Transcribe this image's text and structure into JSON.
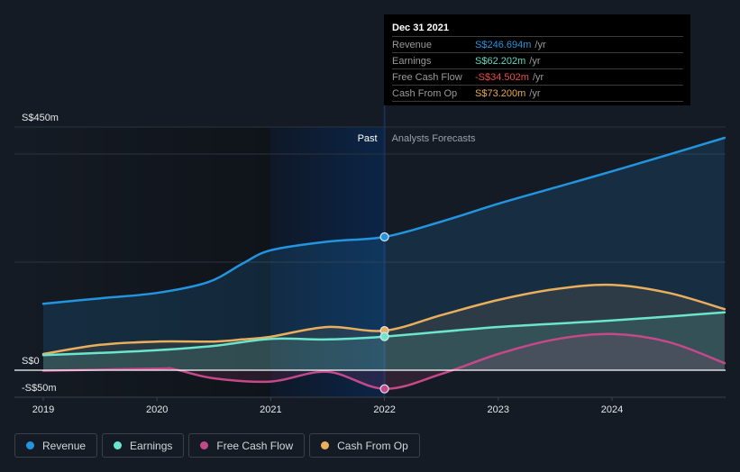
{
  "tooltip": {
    "date": "Dec 31 2021",
    "rows": [
      {
        "label": "Revenue",
        "value": "S$246.694m",
        "unit": "/yr",
        "color": "#2394df"
      },
      {
        "label": "Earnings",
        "value": "S$62.202m",
        "unit": "/yr",
        "color": "#5fd9be"
      },
      {
        "label": "Free Cash Flow",
        "value": "-S$34.502m",
        "unit": "/yr",
        "color": "#e84c4c"
      },
      {
        "label": "Cash From Op",
        "value": "S$73.200m",
        "unit": "/yr",
        "color": "#e8a94f"
      }
    ]
  },
  "legend": [
    {
      "label": "Revenue",
      "color": "#2394df"
    },
    {
      "label": "Earnings",
      "color": "#6ce5cd"
    },
    {
      "label": "Free Cash Flow",
      "color": "#c4498a"
    },
    {
      "label": "Cash From Op",
      "color": "#e9af5e"
    }
  ],
  "chart_data": {
    "type": "line",
    "title": "",
    "xlabel": "",
    "ylabel": "",
    "units": "S$ millions",
    "xlim": [
      2019.0,
      2024.99
    ],
    "ylim": [
      -50,
      450
    ],
    "x_ticks": [
      {
        "value": 2019,
        "label": "2019"
      },
      {
        "value": 2020,
        "label": "2020"
      },
      {
        "value": 2021,
        "label": "2021"
      },
      {
        "value": 2022,
        "label": "2022"
      },
      {
        "value": 2023,
        "label": "2023"
      },
      {
        "value": 2024,
        "label": "2024"
      }
    ],
    "y_ticks": [
      {
        "value": 450,
        "label": "S$450m"
      },
      {
        "value": 0,
        "label": "S$0"
      },
      {
        "value": -50,
        "label": "-S$50m"
      }
    ],
    "gridlines": [
      450,
      400,
      200
    ],
    "grid": true,
    "past_label": "Past",
    "forecast_label": "Analysts Forecasts",
    "past_band": [
      2021.0,
      2022.0
    ],
    "highlight_x": 2022.0,
    "legend_position": "bottom-left",
    "series": [
      {
        "name": "Revenue",
        "key": "revenue",
        "color": "#2394df",
        "fill": "rgba(35,148,223,0.16)",
        "points": [
          [
            2019.0,
            123
          ],
          [
            2019.5,
            133
          ],
          [
            2020.0,
            143
          ],
          [
            2020.45,
            163
          ],
          [
            2020.75,
            197
          ],
          [
            2021.0,
            222
          ],
          [
            2021.5,
            238
          ],
          [
            2022.0,
            246.694
          ],
          [
            2022.5,
            275
          ],
          [
            2023.0,
            308
          ],
          [
            2023.5,
            338
          ],
          [
            2024.0,
            368
          ],
          [
            2024.5,
            399
          ],
          [
            2024.99,
            430
          ]
        ]
      },
      {
        "name": "Cash From Op",
        "key": "cash-from-op",
        "color": "#e9af5e",
        "fill": "rgba(233,175,94,0.10)",
        "points": [
          [
            2019.0,
            30
          ],
          [
            2019.5,
            47
          ],
          [
            2020.0,
            53
          ],
          [
            2020.5,
            53
          ],
          [
            2020.75,
            57
          ],
          [
            2021.0,
            62
          ],
          [
            2021.5,
            80
          ],
          [
            2022.0,
            73.2
          ],
          [
            2022.5,
            102
          ],
          [
            2023.0,
            130
          ],
          [
            2023.5,
            150
          ],
          [
            2024.0,
            158
          ],
          [
            2024.5,
            143
          ],
          [
            2024.99,
            113
          ]
        ]
      },
      {
        "name": "Earnings",
        "key": "earnings",
        "color": "#6ce5cd",
        "fill": "rgba(108,229,205,0.13)",
        "points": [
          [
            2019.0,
            28
          ],
          [
            2019.5,
            32
          ],
          [
            2020.0,
            37
          ],
          [
            2020.5,
            45
          ],
          [
            2021.0,
            58
          ],
          [
            2021.5,
            57
          ],
          [
            2022.0,
            62.202
          ],
          [
            2023.0,
            80
          ],
          [
            2024.0,
            92
          ],
          [
            2024.99,
            107
          ]
        ]
      },
      {
        "name": "Free Cash Flow",
        "key": "free-cash-flow",
        "color": "#c4498a",
        "fill": "rgba(196,73,138,0.14)",
        "points": [
          [
            2019.0,
            -1
          ],
          [
            2020.0,
            3
          ],
          [
            2020.15,
            2
          ],
          [
            2020.5,
            -15
          ],
          [
            2021.0,
            -21
          ],
          [
            2021.5,
            -3
          ],
          [
            2022.0,
            -34.502
          ],
          [
            2022.5,
            -7
          ],
          [
            2023.0,
            30
          ],
          [
            2023.5,
            57
          ],
          [
            2024.0,
            67
          ],
          [
            2024.5,
            52
          ],
          [
            2024.99,
            13
          ]
        ]
      }
    ]
  }
}
